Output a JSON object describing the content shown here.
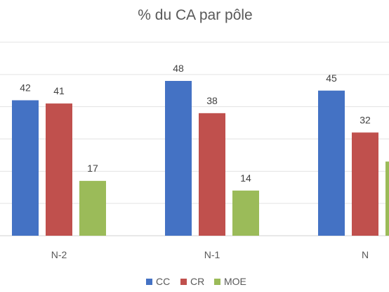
{
  "chart_data": {
    "type": "bar",
    "title": "% du CA par pôle",
    "categories": [
      "N-2",
      "N-1",
      "N"
    ],
    "series": [
      {
        "name": "CC",
        "values": [
          42,
          48,
          45
        ],
        "color": "#4472C4"
      },
      {
        "name": "CR",
        "values": [
          41,
          38,
          32
        ],
        "color": "#C0504D"
      },
      {
        "name": "MOE",
        "values": [
          17,
          14,
          23
        ],
        "color": "#9BBB59"
      }
    ],
    "ylim": [
      0,
      60
    ],
    "grid": true,
    "legend": "bottom"
  }
}
